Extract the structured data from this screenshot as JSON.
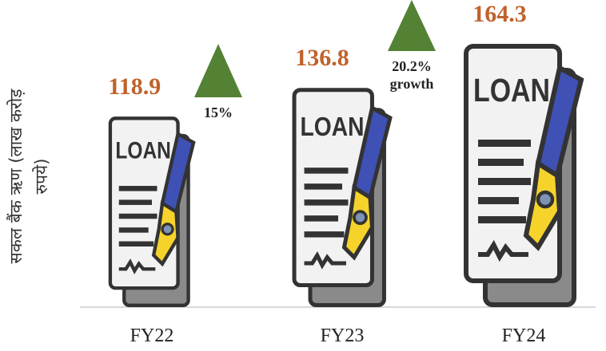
{
  "chart_data": {
    "type": "bar",
    "y_label": "सकल बैंक ऋण (लाख करोड़ रुपये)",
    "categories": [
      "FY22",
      "FY23",
      "FY24"
    ],
    "values": [
      118.9,
      136.8,
      164.3
    ],
    "value_color": "#c0622b",
    "icon_label": "LOAN",
    "annotations": [
      {
        "text": "15%",
        "color": "#548235"
      },
      {
        "text": "20.2% growth",
        "color": "#548235"
      }
    ]
  }
}
